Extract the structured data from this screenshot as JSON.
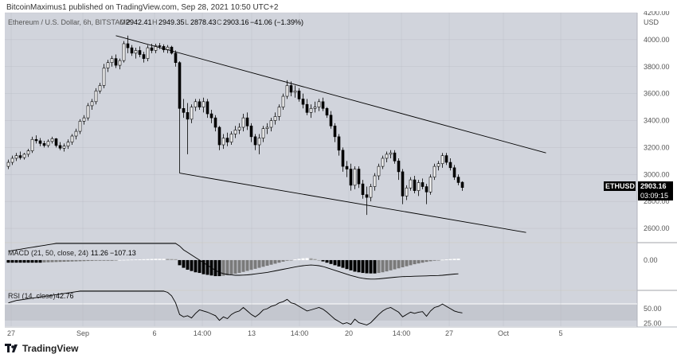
{
  "header": {
    "text": "BitcoinMaximus1 published on TradingView.com, Sep 28, 2021 10:50 UTC+2"
  },
  "footer": {
    "brand": "TradingView",
    "logo_icon": "tradingview-logo-icon"
  },
  "colors": {
    "background": "#d1d4dc",
    "up_candle": "#ffffff",
    "down_candle": "#000000",
    "grid": "#b2b5be",
    "trendline": "#000000",
    "price_tag_bg": "#000000",
    "price_tag_fg": "#ffffff"
  },
  "main": {
    "legend": "Ethereum / U.S. Dollar, 6h, BITSTAMP",
    "open_label": "O",
    "open": "2942.41",
    "high_label": "H",
    "high": "2949.35",
    "low_label": "L",
    "low": "2878.43",
    "close_label": "C",
    "close": "2903.16",
    "change": "−41.06 (−1.39%)",
    "currency": "USD",
    "price_tag_symbol": "ETHUSD",
    "price_tag_price": "2903.16",
    "price_tag_countdown": "03:09:15"
  },
  "macd_panel": {
    "legend": "MACD (21, 50, close, 24)",
    "v1": "11.26",
    "v2": "−107.13"
  },
  "rsi_panel": {
    "legend": "RSI (14, close)",
    "value": "42.76"
  },
  "chart_data": {
    "type": "candlestick",
    "symbol": "ETHUSD",
    "timeframe": "6h",
    "exchange": "BITSTAMP",
    "ylim": [
      2500,
      4200
    ],
    "y_ticks": [
      "2600.00",
      "2800.00",
      "3000.00",
      "3200.00",
      "3400.00",
      "3600.00",
      "3800.00",
      "4000.00",
      "4200.00"
    ],
    "x_ticks": [
      "27",
      "Sep",
      "6",
      "14:00",
      "13",
      "14:00",
      "20",
      "14:00",
      "27",
      "Oct",
      "5"
    ],
    "candles": [
      [
        3060,
        3110,
        3040,
        3090
      ],
      [
        3090,
        3140,
        3070,
        3120
      ],
      [
        3120,
        3160,
        3100,
        3140
      ],
      [
        3140,
        3170,
        3110,
        3125
      ],
      [
        3125,
        3160,
        3110,
        3150
      ],
      [
        3150,
        3190,
        3130,
        3175
      ],
      [
        3175,
        3280,
        3160,
        3260
      ],
      [
        3260,
        3290,
        3230,
        3250
      ],
      [
        3250,
        3270,
        3210,
        3230
      ],
      [
        3230,
        3250,
        3200,
        3215
      ],
      [
        3215,
        3260,
        3200,
        3245
      ],
      [
        3245,
        3280,
        3230,
        3265
      ],
      [
        3265,
        3270,
        3200,
        3215
      ],
      [
        3215,
        3240,
        3180,
        3195
      ],
      [
        3195,
        3230,
        3170,
        3210
      ],
      [
        3210,
        3260,
        3190,
        3240
      ],
      [
        3240,
        3300,
        3220,
        3285
      ],
      [
        3285,
        3340,
        3260,
        3320
      ],
      [
        3320,
        3410,
        3300,
        3395
      ],
      [
        3395,
        3440,
        3370,
        3420
      ],
      [
        3420,
        3530,
        3400,
        3510
      ],
      [
        3510,
        3560,
        3480,
        3540
      ],
      [
        3540,
        3640,
        3520,
        3620
      ],
      [
        3620,
        3680,
        3600,
        3660
      ],
      [
        3660,
        3820,
        3640,
        3790
      ],
      [
        3790,
        3850,
        3760,
        3830
      ],
      [
        3830,
        3880,
        3800,
        3860
      ],
      [
        3860,
        3890,
        3790,
        3810
      ],
      [
        3810,
        3860,
        3780,
        3845
      ],
      [
        3845,
        3990,
        3830,
        3970
      ],
      [
        3970,
        4030,
        3900,
        3940
      ],
      [
        3940,
        3960,
        3880,
        3900
      ],
      [
        3900,
        3940,
        3860,
        3920
      ],
      [
        3920,
        3950,
        3870,
        3890
      ],
      [
        3890,
        3910,
        3830,
        3860
      ],
      [
        3860,
        3960,
        3840,
        3940
      ],
      [
        3940,
        3970,
        3900,
        3920
      ],
      [
        3920,
        3970,
        3900,
        3955
      ],
      [
        3955,
        3975,
        3930,
        3950
      ],
      [
        3950,
        3965,
        3905,
        3925
      ],
      [
        3925,
        3960,
        3900,
        3945
      ],
      [
        3945,
        3955,
        3890,
        3900
      ],
      [
        3900,
        3920,
        3800,
        3830
      ],
      [
        3830,
        3840,
        3010,
        3490
      ],
      [
        3490,
        3560,
        3420,
        3460
      ],
      [
        3460,
        3530,
        3150,
        3410
      ],
      [
        3410,
        3520,
        3380,
        3500
      ],
      [
        3500,
        3560,
        3470,
        3540
      ],
      [
        3540,
        3560,
        3480,
        3500
      ],
      [
        3500,
        3570,
        3460,
        3540
      ],
      [
        3540,
        3560,
        3420,
        3450
      ],
      [
        3450,
        3480,
        3380,
        3420
      ],
      [
        3420,
        3440,
        3320,
        3350
      ],
      [
        3350,
        3360,
        3180,
        3220
      ],
      [
        3220,
        3300,
        3190,
        3270
      ],
      [
        3270,
        3310,
        3210,
        3240
      ],
      [
        3240,
        3320,
        3220,
        3300
      ],
      [
        3300,
        3360,
        3270,
        3330
      ],
      [
        3330,
        3380,
        3300,
        3350
      ],
      [
        3350,
        3450,
        3320,
        3420
      ],
      [
        3420,
        3460,
        3330,
        3360
      ],
      [
        3360,
        3380,
        3240,
        3280
      ],
      [
        3280,
        3300,
        3180,
        3220
      ],
      [
        3220,
        3300,
        3150,
        3270
      ],
      [
        3270,
        3360,
        3240,
        3340
      ],
      [
        3340,
        3380,
        3300,
        3350
      ],
      [
        3350,
        3420,
        3320,
        3400
      ],
      [
        3400,
        3460,
        3370,
        3430
      ],
      [
        3430,
        3520,
        3400,
        3500
      ],
      [
        3500,
        3600,
        3480,
        3580
      ],
      [
        3580,
        3700,
        3560,
        3660
      ],
      [
        3660,
        3690,
        3580,
        3610
      ],
      [
        3610,
        3660,
        3570,
        3620
      ],
      [
        3620,
        3640,
        3540,
        3560
      ],
      [
        3560,
        3600,
        3490,
        3520
      ],
      [
        3520,
        3560,
        3440,
        3460
      ],
      [
        3460,
        3520,
        3420,
        3490
      ],
      [
        3490,
        3540,
        3460,
        3500
      ],
      [
        3500,
        3560,
        3470,
        3540
      ],
      [
        3540,
        3570,
        3470,
        3490
      ],
      [
        3490,
        3500,
        3420,
        3440
      ],
      [
        3440,
        3470,
        3340,
        3360
      ],
      [
        3360,
        3380,
        3240,
        3280
      ],
      [
        3280,
        3300,
        3140,
        3180
      ],
      [
        3180,
        3200,
        3020,
        3060
      ],
      [
        3060,
        3100,
        2980,
        3040
      ],
      [
        3040,
        3080,
        2880,
        2920
      ],
      [
        2920,
        3060,
        2890,
        3040
      ],
      [
        3040,
        3060,
        2900,
        2930
      ],
      [
        2930,
        2960,
        2820,
        2850
      ],
      [
        2850,
        2910,
        2700,
        2830
      ],
      [
        2830,
        2930,
        2800,
        2910
      ],
      [
        2910,
        3010,
        2880,
        2990
      ],
      [
        2990,
        3080,
        2960,
        3060
      ],
      [
        3060,
        3140,
        3040,
        3120
      ],
      [
        3120,
        3170,
        3090,
        3150
      ],
      [
        3150,
        3180,
        3120,
        3160
      ],
      [
        3160,
        3180,
        3080,
        3100
      ],
      [
        3100,
        3120,
        2960,
        3020
      ],
      [
        3020,
        3040,
        2780,
        2840
      ],
      [
        2840,
        2920,
        2810,
        2900
      ],
      [
        2900,
        2980,
        2880,
        2960
      ],
      [
        2960,
        2990,
        2860,
        2880
      ],
      [
        2880,
        2960,
        2840,
        2940
      ],
      [
        2940,
        2970,
        2890,
        2910
      ],
      [
        2910,
        2930,
        2780,
        2870
      ],
      [
        2870,
        3000,
        2850,
        2980
      ],
      [
        2980,
        3080,
        2960,
        3060
      ],
      [
        3060,
        3100,
        3030,
        3080
      ],
      [
        3080,
        3160,
        3050,
        3140
      ],
      [
        3140,
        3160,
        3070,
        3090
      ],
      [
        3090,
        3120,
        3030,
        3050
      ],
      [
        3050,
        3070,
        2960,
        2980
      ],
      [
        2980,
        3000,
        2920,
        2940
      ],
      [
        2942.41,
        2949.35,
        2878.43,
        2903.16
      ]
    ],
    "trendlines": [
      {
        "points": [
          [
            "candle",
            27,
            4030
          ],
          [
            "candle",
            135,
            3160
          ]
        ]
      },
      {
        "points": [
          [
            "candle",
            43,
            3010
          ],
          [
            "candle",
            130,
            2570
          ]
        ]
      }
    ],
    "macd": {
      "ylim": [
        -230,
        130
      ],
      "y_ticks": [
        "0.00"
      ],
      "histogram": [
        -20,
        -20,
        -20,
        -20,
        -20,
        -20,
        -20,
        -20,
        -20,
        -18,
        -17,
        -16,
        -15,
        -14,
        -13,
        -12,
        -11,
        -10,
        -9,
        -8,
        -7,
        -6,
        -5,
        -4,
        -3,
        -2,
        -1,
        0,
        1,
        2,
        3,
        4,
        5,
        6,
        7,
        8,
        9,
        10,
        10,
        10,
        9,
        8,
        7,
        -40,
        -60,
        -75,
        -85,
        -95,
        -100,
        -110,
        -115,
        -120,
        -125,
        -125,
        -122,
        -118,
        -112,
        -106,
        -100,
        -92,
        -84,
        -76,
        -68,
        -60,
        -52,
        -44,
        -36,
        -28,
        -20,
        -12,
        -5,
        0,
        6,
        10,
        14,
        16,
        14,
        8,
        0,
        -10,
        -20,
        -30,
        -40,
        -50,
        -60,
        -70,
        -80,
        -90,
        -95,
        -100,
        -103,
        -104,
        -104,
        -100,
        -95,
        -88,
        -80,
        -72,
        -64,
        -56,
        -48,
        -40,
        -32,
        -26,
        -20,
        -14,
        -9,
        -4,
        0,
        3,
        6,
        8,
        10,
        11.26
      ],
      "signal": [
        70,
        75,
        80,
        85,
        90,
        95,
        100,
        105,
        110,
        115,
        120,
        125,
        130,
        135,
        140,
        145,
        150,
        155,
        160,
        165,
        170,
        175,
        180,
        185,
        190,
        195,
        200,
        200,
        200,
        200,
        200,
        200,
        200,
        200,
        200,
        200,
        200,
        200,
        200,
        200,
        200,
        200,
        170,
        110,
        80,
        60,
        40,
        20,
        0,
        -20,
        -40,
        -60,
        -80,
        -95,
        -105,
        -112,
        -116,
        -118,
        -118,
        -117,
        -115,
        -112,
        -108,
        -104,
        -100,
        -96,
        -90,
        -84,
        -78,
        -72,
        -66,
        -60,
        -54,
        -48,
        -44,
        -40,
        -38,
        -40,
        -44,
        -50,
        -60,
        -70,
        -80,
        -90,
        -100,
        -110,
        -120,
        -128,
        -136,
        -142,
        -146,
        -148,
        -148,
        -146,
        -143,
        -140,
        -137,
        -134,
        -131,
        -129,
        -128,
        -127,
        -126,
        -125,
        -124,
        -123,
        -122,
        -121,
        -120,
        -118,
        -115,
        -112,
        -109,
        -107.13
      ]
    },
    "rsi": {
      "ylim": [
        20,
        80
      ],
      "y_ticks": [
        "25.00",
        "50.00"
      ],
      "band": [
        30,
        70
      ],
      "values": [
        60,
        62,
        64,
        65,
        66,
        67,
        68,
        69,
        70,
        71,
        72,
        73,
        74,
        75,
        76,
        77,
        78,
        79,
        80,
        80,
        80,
        80,
        80,
        80,
        80,
        80,
        80,
        80,
        80,
        80,
        80,
        80,
        80,
        80,
        80,
        80,
        80,
        80,
        80,
        80,
        78,
        72,
        60,
        40,
        36,
        38,
        34,
        42,
        48,
        46,
        44,
        41,
        38,
        30,
        36,
        33,
        40,
        44,
        46,
        52,
        46,
        40,
        36,
        41,
        48,
        50,
        54,
        56,
        60,
        62,
        66,
        60,
        58,
        54,
        50,
        46,
        48,
        50,
        52,
        49,
        44,
        38,
        32,
        28,
        24,
        26,
        23,
        32,
        26,
        24,
        22,
        26,
        33,
        40,
        46,
        50,
        52,
        48,
        44,
        36,
        40,
        44,
        42,
        44,
        45,
        37,
        46,
        52,
        54,
        58,
        54,
        50,
        46,
        44,
        42.76
      ]
    }
  }
}
